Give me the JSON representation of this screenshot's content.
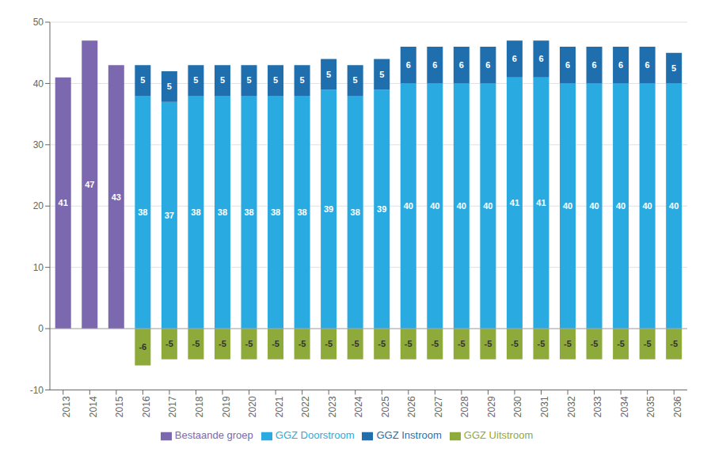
{
  "chart_data": {
    "type": "bar",
    "categories": [
      "2013",
      "2014",
      "2015",
      "2016",
      "2017",
      "2018",
      "2019",
      "2020",
      "2021",
      "2022",
      "2023",
      "2024",
      "2025",
      "2026",
      "2027",
      "2028",
      "2029",
      "2030",
      "2031",
      "2032",
      "2033",
      "2034",
      "2035",
      "2036"
    ],
    "series": [
      {
        "name": "GGZ Doorstroom",
        "color": "#29ABE2",
        "values": [
          0,
          0,
          0,
          38,
          37,
          38,
          38,
          38,
          38,
          38,
          39,
          38,
          39,
          40,
          40,
          40,
          40,
          41,
          41,
          40,
          40,
          40,
          40,
          40
        ]
      },
      {
        "name": "GGZ Instroom",
        "color": "#1F6FAE",
        "values": [
          0,
          0,
          0,
          5,
          5,
          5,
          5,
          5,
          5,
          5,
          5,
          5,
          5,
          6,
          6,
          6,
          6,
          6,
          6,
          6,
          6,
          6,
          6,
          5
        ]
      },
      {
        "name": "GGZ Uitstroom",
        "color": "#8EAA3B",
        "values": [
          0,
          0,
          0,
          -6,
          -5,
          -5,
          -5,
          -5,
          -5,
          -5,
          -5,
          -5,
          -5,
          -5,
          -5,
          -5,
          -5,
          -5,
          -5,
          -5,
          -5,
          -5,
          -5,
          -5
        ]
      },
      {
        "name": "Bestaande groep",
        "color": "#7B68AE",
        "values": [
          41,
          47,
          43,
          0,
          0,
          0,
          0,
          0,
          0,
          0,
          0,
          0,
          0,
          0,
          0,
          0,
          0,
          0,
          0,
          0,
          0,
          0,
          0,
          0
        ]
      }
    ],
    "stacked": true,
    "data_labels": true,
    "ylim": [
      -10,
      50
    ],
    "yticks": [
      -10,
      0,
      10,
      20,
      30,
      40,
      50
    ],
    "grid": true,
    "legend": "bottom"
  }
}
